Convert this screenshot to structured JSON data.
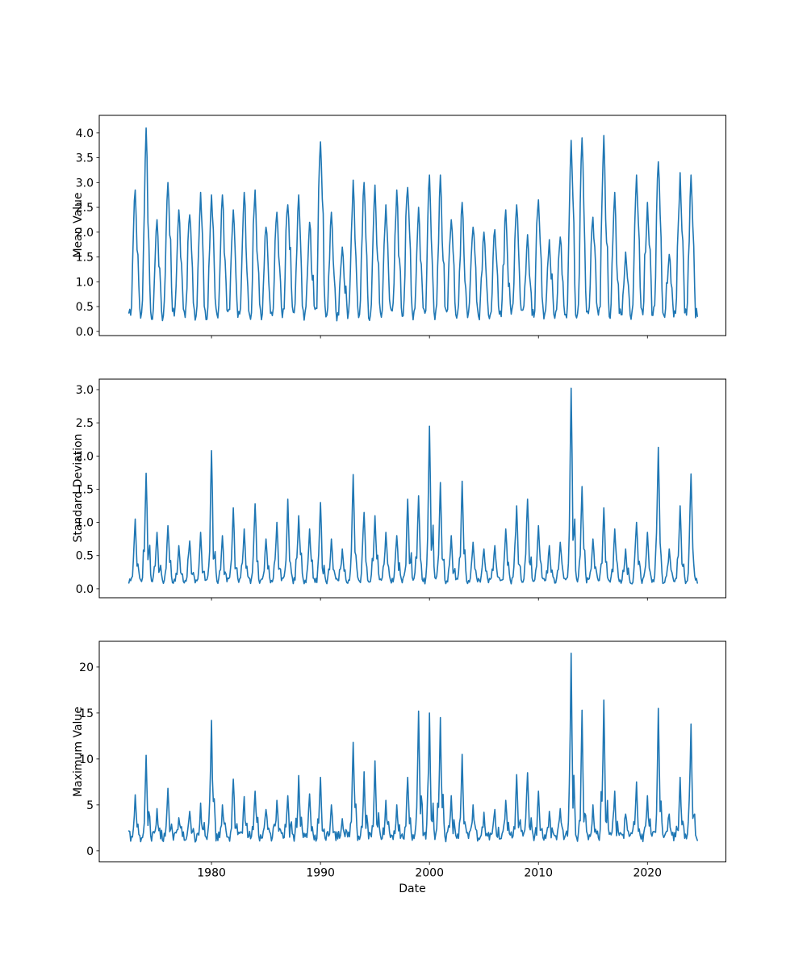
{
  "figure": {
    "background_color": "#ffffff",
    "text_color": "#000000",
    "spine_color": "#000000"
  },
  "chart_data": {
    "type": "line",
    "line_color": "#1f77b4",
    "line_width": 1.6,
    "xlabel": "Date",
    "x_tick_labels": [
      "1980",
      "1990",
      "2000",
      "2010",
      "2020"
    ],
    "x_range": [
      1969.7,
      2027.2
    ],
    "data_start_year": 1972.4167,
    "data_end_year": 2024.5833,
    "sampling": "monthly",
    "grid": "off",
    "legend": "none",
    "seasonality": {
      "peak_center": "january-of-year",
      "peak_sigma_years": {
        "mean": 0.14,
        "std": 0.09,
        "max": 0.075
      }
    },
    "years": [
      1973,
      1974,
      1975,
      1976,
      1977,
      1978,
      1979,
      1980,
      1981,
      1982,
      1983,
      1984,
      1985,
      1986,
      1987,
      1988,
      1989,
      1990,
      1991,
      1992,
      1993,
      1994,
      1995,
      1996,
      1997,
      1998,
      1999,
      2000,
      2001,
      2002,
      2003,
      2004,
      2005,
      2006,
      2007,
      2008,
      2009,
      2010,
      2011,
      2012,
      2013,
      2014,
      2015,
      2016,
      2017,
      2018,
      2019,
      2020,
      2021,
      2022,
      2023,
      2024
    ],
    "subplots": [
      {
        "id": "mean",
        "ylabel": "Mean Value",
        "y_tick_labels": [
          "0.0",
          "0.5",
          "1.0",
          "1.5",
          "2.0",
          "2.5",
          "3.0",
          "3.5",
          "4.0"
        ],
        "ylim": [
          -0.085,
          4.355
        ],
        "baseline_low": 0.33,
        "min_value": 0.16,
        "annual_peaks": [
          2.85,
          4.1,
          2.25,
          3.0,
          2.45,
          2.35,
          2.8,
          2.75,
          2.75,
          2.45,
          2.8,
          2.85,
          2.1,
          2.4,
          2.55,
          2.75,
          2.2,
          3.82,
          2.4,
          1.7,
          3.05,
          3.0,
          2.95,
          2.55,
          2.85,
          2.9,
          2.5,
          3.15,
          3.15,
          2.25,
          2.6,
          2.1,
          2.0,
          2.05,
          2.45,
          2.55,
          1.95,
          2.65,
          1.85,
          1.9,
          3.85,
          3.9,
          2.3,
          3.95,
          2.8,
          1.6,
          3.15,
          2.6,
          3.42,
          1.55,
          3.2,
          3.15
        ]
      },
      {
        "id": "std",
        "ylabel": "Standard Deviation",
        "y_tick_labels": [
          "0.0",
          "0.5",
          "1.0",
          "1.5",
          "2.0",
          "2.5",
          "3.0"
        ],
        "ylim": [
          -0.135,
          3.158
        ],
        "baseline_low": 0.12,
        "min_value": 0.03,
        "annual_peaks": [
          1.05,
          1.74,
          0.85,
          0.95,
          0.65,
          0.72,
          0.85,
          2.08,
          0.8,
          1.22,
          0.9,
          1.28,
          0.75,
          1.0,
          1.35,
          1.1,
          0.9,
          1.3,
          0.75,
          0.6,
          1.72,
          1.15,
          1.1,
          0.85,
          0.8,
          1.35,
          1.4,
          2.45,
          1.6,
          0.8,
          1.62,
          0.7,
          0.6,
          0.65,
          0.9,
          1.25,
          1.35,
          0.95,
          0.65,
          0.7,
          3.02,
          1.54,
          0.75,
          1.22,
          0.9,
          0.6,
          1.0,
          0.85,
          2.13,
          0.6,
          1.25,
          1.73
        ]
      },
      {
        "id": "max",
        "ylabel": "Maximum Value",
        "y_tick_labels": [
          "0",
          "5",
          "10",
          "15",
          "20"
        ],
        "ylim": [
          -1.2,
          22.8
        ],
        "baseline_low": 1.6,
        "min_value": 0.45,
        "annual_peaks": [
          6.1,
          10.4,
          4.6,
          6.8,
          3.6,
          4.3,
          5.2,
          14.2,
          5.0,
          7.8,
          5.9,
          6.5,
          4.5,
          5.5,
          6.0,
          8.2,
          6.2,
          8.0,
          5.0,
          3.5,
          11.8,
          8.6,
          9.8,
          5.5,
          5.0,
          8.0,
          15.2,
          15.0,
          14.5,
          6.0,
          10.5,
          5.0,
          4.2,
          4.5,
          5.5,
          8.3,
          8.5,
          6.5,
          4.3,
          4.6,
          21.5,
          15.3,
          5.0,
          16.4,
          6.5,
          4.0,
          7.5,
          6.0,
          15.5,
          4.0,
          8.0,
          13.8
        ]
      }
    ]
  }
}
